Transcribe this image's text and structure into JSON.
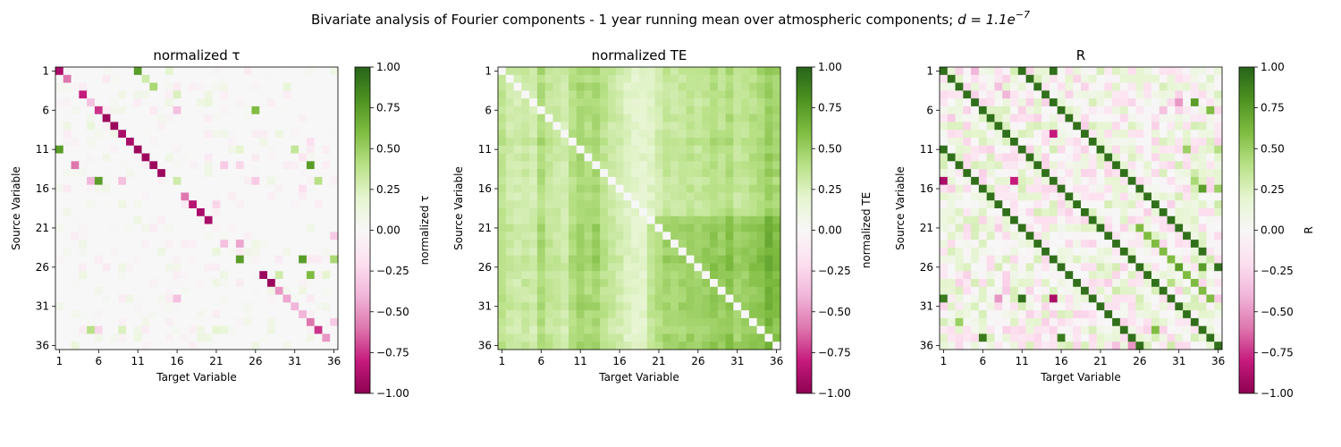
{
  "figure": {
    "suptitle": "Bivariate analysis of Fourier components - 1 year running mean over atmospheric components; ",
    "suptitle_math_base": "d = 1.1e",
    "suptitle_math_exp": "−7"
  },
  "colors": {
    "cmap_piyg": [
      "#8e0152",
      "#c51b7d",
      "#de77ae",
      "#f1b6da",
      "#fde0ef",
      "#f7f7f7",
      "#e6f5d0",
      "#b8e186",
      "#7fbc41",
      "#4d9221",
      "#276419"
    ]
  },
  "chart_data": [
    {
      "type": "heatmap",
      "title": "normalized τ",
      "xlabel": "Target Variable",
      "ylabel": "Source Variable",
      "colorbar_label": "normalized τ",
      "n": 36,
      "clim": [
        -1,
        1
      ],
      "xticks": [
        "1",
        "6",
        "11",
        "16",
        "21",
        "26",
        "31",
        "36"
      ],
      "yticks": [
        "1",
        "6",
        "11",
        "16",
        "21",
        "26",
        "31",
        "36"
      ],
      "colorbar_ticks": [
        "−1.00",
        "−0.75",
        "−0.50",
        "−0.25",
        "0.00",
        "0.25",
        "0.50",
        "0.75",
        "1.00"
      ],
      "diagonal": "main-negative",
      "values_sparse": [
        [
          1,
          1,
          -0.9
        ],
        [
          2,
          2,
          -0.6
        ],
        [
          4,
          4,
          -0.8
        ],
        [
          5,
          5,
          -0.35
        ],
        [
          6,
          6,
          -0.75
        ],
        [
          7,
          7,
          -0.95
        ],
        [
          8,
          8,
          -0.95
        ],
        [
          9,
          9,
          -0.9
        ],
        [
          10,
          10,
          -0.9
        ],
        [
          11,
          11,
          -0.95
        ],
        [
          12,
          12,
          -0.95
        ],
        [
          13,
          13,
          -0.95
        ],
        [
          14,
          14,
          -0.95
        ],
        [
          17,
          17,
          -0.6
        ],
        [
          18,
          18,
          -0.85
        ],
        [
          19,
          19,
          -0.9
        ],
        [
          20,
          20,
          -0.9
        ],
        [
          27,
          27,
          -0.95
        ],
        [
          28,
          28,
          -0.95
        ],
        [
          29,
          29,
          -0.5
        ],
        [
          30,
          30,
          -0.45
        ],
        [
          31,
          31,
          -0.4
        ],
        [
          32,
          32,
          -0.4
        ],
        [
          33,
          33,
          -0.6
        ],
        [
          34,
          34,
          -0.75
        ],
        [
          35,
          35,
          -0.5
        ],
        [
          1,
          11,
          0.75
        ],
        [
          11,
          1,
          0.75
        ],
        [
          1,
          15,
          0.2
        ],
        [
          2,
          12,
          0.3
        ],
        [
          3,
          13,
          0.45
        ],
        [
          4,
          16,
          0.25
        ],
        [
          6,
          26,
          0.6
        ],
        [
          6,
          16,
          -0.35
        ],
        [
          13,
          3,
          -0.6
        ],
        [
          13,
          22,
          -0.3
        ],
        [
          13,
          24,
          -0.25
        ],
        [
          13,
          33,
          0.75
        ],
        [
          15,
          5,
          -0.4
        ],
        [
          15,
          6,
          0.75
        ],
        [
          15,
          9,
          -0.35
        ],
        [
          15,
          26,
          -0.3
        ],
        [
          15,
          34,
          0.4
        ],
        [
          15,
          16,
          0.3
        ],
        [
          16,
          32,
          -0.2
        ],
        [
          25,
          24,
          0.75
        ],
        [
          25,
          32,
          0.75
        ],
        [
          25,
          36,
          0.45
        ],
        [
          23,
          22,
          -0.35
        ],
        [
          23,
          24,
          -0.45
        ],
        [
          27,
          29,
          0.3
        ],
        [
          27,
          33,
          0.6
        ],
        [
          30,
          16,
          -0.35
        ],
        [
          34,
          5,
          0.4
        ],
        [
          34,
          6,
          -0.25
        ],
        [
          34,
          9,
          0.25
        ],
        [
          36,
          3,
          0.15
        ],
        [
          34,
          21,
          0.2
        ],
        [
          34,
          22,
          0.15
        ],
        [
          22,
          36,
          -0.3
        ],
        [
          33,
          36,
          -0.3
        ],
        [
          18,
          21,
          -0.25
        ],
        [
          10,
          33,
          -0.2
        ],
        [
          3,
          30,
          0.15
        ],
        [
          5,
          20,
          0.15
        ],
        [
          8,
          5,
          0.15
        ],
        [
          11,
          24,
          0.2
        ],
        [
          11,
          31,
          0.35
        ],
        [
          12,
          32,
          -0.15
        ],
        [
          24,
          21,
          0.15
        ],
        [
          27,
          35,
          0.2
        ]
      ]
    },
    {
      "type": "heatmap",
      "title": "normalized TE",
      "xlabel": "Target Variable",
      "ylabel": "Source Variable",
      "colorbar_label": "normalized TE",
      "n": 36,
      "clim": [
        -1,
        1
      ],
      "xticks": [
        "1",
        "6",
        "11",
        "16",
        "21",
        "26",
        "31",
        "36"
      ],
      "yticks": [
        "1",
        "6",
        "11",
        "16",
        "21",
        "26",
        "31",
        "36"
      ],
      "colorbar_ticks": [
        "−1.00",
        "−0.75",
        "−0.50",
        "−0.25",
        "0.00",
        "0.25",
        "0.50",
        "0.75",
        "1.00"
      ],
      "diagonal": "zero",
      "col_weights": [
        0.45,
        0.35,
        0.3,
        0.35,
        0.3,
        0.55,
        0.4,
        0.35,
        0.3,
        0.5,
        0.6,
        0.55,
        0.6,
        0.45,
        0.35,
        0.3,
        0.2,
        0.15,
        0.15,
        0.2,
        0.3,
        0.4,
        0.35,
        0.4,
        0.45,
        0.4,
        0.45,
        0.5,
        0.45,
        0.55,
        0.4,
        0.45,
        0.5,
        0.55,
        0.7,
        0.6
      ],
      "row_weights": [
        0.55,
        0.35,
        0.45,
        0.4,
        0.35,
        0.4,
        0.45,
        0.35,
        0.4,
        0.55,
        0.4,
        0.45,
        0.4,
        0.45,
        0.35,
        0.4,
        0.35,
        0.3,
        0.4,
        0.45,
        0.6,
        0.5,
        0.55,
        0.5,
        0.65,
        0.6,
        0.45,
        0.5,
        0.4,
        0.45,
        0.6,
        0.45,
        0.4,
        0.35,
        0.45,
        0.55
      ]
    },
    {
      "type": "heatmap",
      "title": "R",
      "xlabel": "Target Variable",
      "ylabel": "Source Variable",
      "colorbar_label": "R",
      "n": 36,
      "clim": [
        -1,
        1
      ],
      "xticks": [
        "1",
        "6",
        "11",
        "16",
        "21",
        "26",
        "31",
        "36"
      ],
      "yticks": [
        "1",
        "6",
        "11",
        "16",
        "21",
        "26",
        "31",
        "36"
      ],
      "colorbar_ticks": [
        "−1.00",
        "−0.75",
        "−0.50",
        "−0.25",
        "0.00",
        "0.25",
        "0.50",
        "0.75",
        "1.00"
      ],
      "diagonal": "main-positive",
      "offdiag_bands": [
        [
          10,
          0.95
        ],
        [
          -10,
          0.95
        ],
        [
          5,
          0.6
        ]
      ],
      "values_sparse": [
        [
          1,
          11,
          0.95
        ],
        [
          11,
          1,
          0.95
        ],
        [
          1,
          15,
          0.95
        ],
        [
          1,
          5,
          -0.4
        ],
        [
          3,
          8,
          -0.35
        ],
        [
          4,
          9,
          -0.4
        ],
        [
          5,
          31,
          -0.5
        ],
        [
          5,
          33,
          0.75
        ],
        [
          6,
          29,
          -0.35
        ],
        [
          6,
          35,
          0.6
        ],
        [
          7,
          2,
          -0.3
        ],
        [
          9,
          15,
          -0.8
        ],
        [
          11,
          32,
          0.5
        ],
        [
          11,
          36,
          0.4
        ],
        [
          15,
          1,
          -0.9
        ],
        [
          15,
          10,
          -0.8
        ],
        [
          15,
          33,
          0.45
        ],
        [
          16,
          34,
          0.75
        ],
        [
          16,
          36,
          0.5
        ],
        [
          14,
          33,
          0.3
        ],
        [
          22,
          27,
          0.6
        ],
        [
          25,
          35,
          0.3
        ],
        [
          26,
          31,
          0.75
        ],
        [
          26,
          34,
          0.75
        ],
        [
          28,
          30,
          0.4
        ],
        [
          29,
          9,
          -0.3
        ],
        [
          29,
          23,
          0.3
        ],
        [
          30,
          1,
          0.9
        ],
        [
          30,
          11,
          0.95
        ],
        [
          30,
          15,
          -0.9
        ],
        [
          30,
          8,
          -0.5
        ],
        [
          30,
          36,
          -0.3
        ],
        [
          34,
          28,
          0.6
        ],
        [
          35,
          6,
          0.9
        ],
        [
          35,
          16,
          0.9
        ],
        [
          36,
          23,
          -0.35
        ],
        [
          36,
          25,
          -0.5
        ],
        [
          33,
          3,
          0.5
        ],
        [
          36,
          30,
          0.3
        ],
        [
          20,
          13,
          -0.2
        ],
        [
          18,
          36,
          0.3
        ]
      ]
    }
  ]
}
